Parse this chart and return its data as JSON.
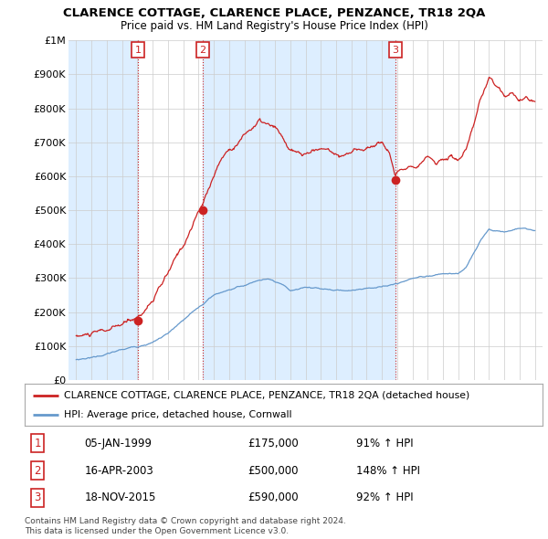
{
  "title": "CLARENCE COTTAGE, CLARENCE PLACE, PENZANCE, TR18 2QA",
  "subtitle": "Price paid vs. HM Land Registry's House Price Index (HPI)",
  "legend_line1": "CLARENCE COTTAGE, CLARENCE PLACE, PENZANCE, TR18 2QA (detached house)",
  "legend_line2": "HPI: Average price, detached house, Cornwall",
  "footer1": "Contains HM Land Registry data © Crown copyright and database right 2024.",
  "footer2": "This data is licensed under the Open Government Licence v3.0.",
  "transactions": [
    {
      "num": 1,
      "date": "05-JAN-1999",
      "price": "£175,000",
      "hpi": "91% ↑ HPI",
      "x": 1999.04
    },
    {
      "num": 2,
      "date": "16-APR-2003",
      "price": "£500,000",
      "hpi": "148% ↑ HPI",
      "x": 2003.29
    },
    {
      "num": 3,
      "date": "18-NOV-2015",
      "price": "£590,000",
      "hpi": "92% ↑ HPI",
      "x": 2015.88
    }
  ],
  "transaction_values": [
    175000,
    500000,
    590000
  ],
  "red_line_color": "#cc2222",
  "blue_line_color": "#6699cc",
  "shade_color": "#ddeeff",
  "vline_color": "#cc2222",
  "background_color": "#ffffff",
  "grid_color": "#cccccc",
  "ylim": [
    0,
    1000000
  ],
  "xlim": [
    1994.5,
    2025.5
  ],
  "yticks": [
    0,
    100000,
    200000,
    300000,
    400000,
    500000,
    600000,
    700000,
    800000,
    900000,
    1000000
  ],
  "ytick_labels": [
    "£0",
    "£100K",
    "£200K",
    "£300K",
    "£400K",
    "£500K",
    "£600K",
    "£700K",
    "£800K",
    "£900K",
    "£1M"
  ],
  "xticks": [
    1995,
    1996,
    1997,
    1998,
    1999,
    2000,
    2001,
    2002,
    2003,
    2004,
    2005,
    2006,
    2007,
    2008,
    2009,
    2010,
    2011,
    2012,
    2013,
    2014,
    2015,
    2016,
    2017,
    2018,
    2019,
    2020,
    2021,
    2022,
    2023,
    2024,
    2025
  ]
}
